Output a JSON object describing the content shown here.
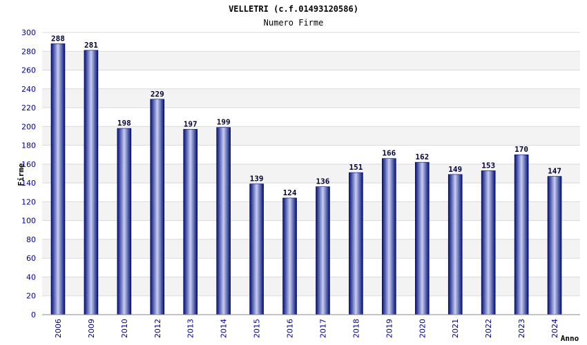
{
  "chart_data": {
    "type": "bar",
    "title": "VELLETRI (c.f.01493120586)",
    "subtitle": "Numero Firme",
    "xlabel": "Anno",
    "ylabel": "Firme",
    "categories": [
      "2006",
      "2009",
      "2010",
      "2012",
      "2013",
      "2014",
      "2015",
      "2016",
      "2017",
      "2018",
      "2019",
      "2020",
      "2021",
      "2022",
      "2023",
      "2024"
    ],
    "values": [
      288,
      281,
      198,
      229,
      197,
      199,
      139,
      124,
      136,
      151,
      166,
      162,
      149,
      153,
      170,
      147
    ],
    "ylim": [
      0,
      300
    ],
    "yticks": [
      "0",
      "20",
      "40",
      "60",
      "80",
      "100",
      "120",
      "140",
      "160",
      "180",
      "200",
      "220",
      "240",
      "260",
      "280",
      "300"
    ],
    "grid": true,
    "bar_color": "#0a1a8c",
    "tick_color": "#00008b"
  }
}
